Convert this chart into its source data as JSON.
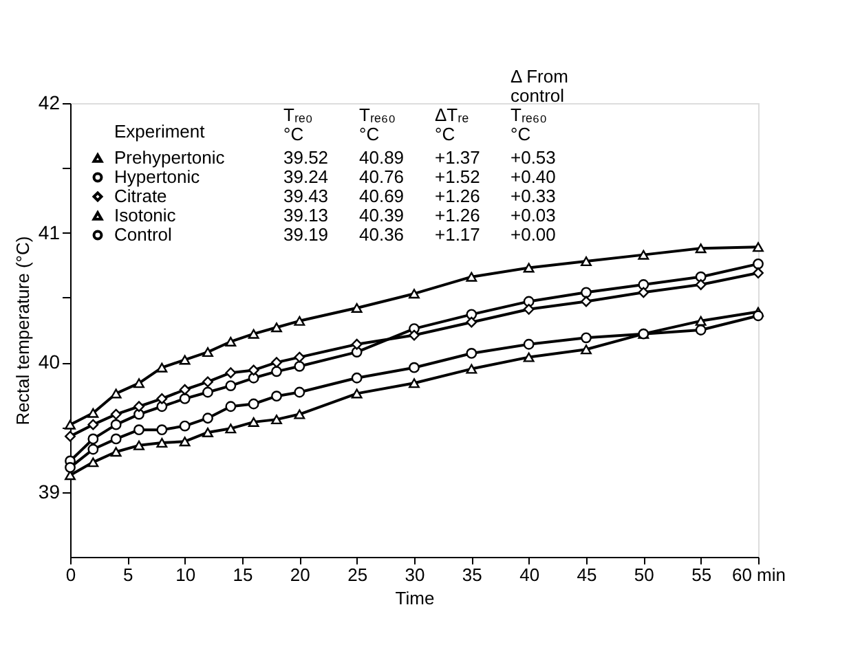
{
  "chart_data": {
    "type": "line",
    "xlabel": "Time",
    "ylabel": "Rectal temperature (°C)",
    "legend_title": "Experiment",
    "legend": "top left",
    "grid": false,
    "line_style": "solid",
    "x": [
      0,
      2,
      4,
      6,
      8,
      10,
      12,
      14,
      16,
      18,
      20,
      25,
      30,
      35,
      40,
      45,
      50,
      55,
      60
    ],
    "xlim": [
      0,
      60
    ],
    "xticks": [
      0,
      5,
      10,
      15,
      20,
      25,
      30,
      35,
      40,
      45,
      50,
      55,
      {
        "value": 60,
        "label": "60 min"
      }
    ],
    "ylim": [
      38.5,
      42
    ],
    "yticks": [
      39,
      {
        "value": 39.5,
        "label": null
      },
      40,
      {
        "value": 40.5,
        "label": null
      },
      41,
      {
        "value": 41.5,
        "label": null
      },
      42
    ],
    "series": [
      {
        "name": "Prehypertonic",
        "color": "#000000",
        "marker": "triangle",
        "values": [
          39.52,
          39.61,
          39.76,
          39.84,
          39.96,
          40.02,
          40.08,
          40.16,
          40.22,
          40.27,
          40.32,
          40.42,
          40.53,
          40.66,
          40.73,
          40.78,
          40.83,
          40.88,
          40.89
        ]
      },
      {
        "name": "Hypertonic",
        "color": "#000000",
        "marker": "circle",
        "values": [
          39.24,
          39.41,
          39.52,
          39.6,
          39.66,
          39.72,
          39.77,
          39.82,
          39.88,
          39.93,
          39.97,
          40.08,
          40.26,
          40.37,
          40.47,
          40.54,
          40.6,
          40.66,
          40.76
        ]
      },
      {
        "name": "Citrate",
        "color": "#000000",
        "marker": "diamond",
        "values": [
          39.43,
          39.52,
          39.6,
          39.66,
          39.72,
          39.79,
          39.85,
          39.92,
          39.94,
          40.0,
          40.04,
          40.14,
          40.21,
          40.31,
          40.41,
          40.47,
          40.54,
          40.6,
          40.69
        ]
      },
      {
        "name": "Isotonic",
        "color": "#000000",
        "marker": "triangle",
        "values": [
          39.13,
          39.23,
          39.31,
          39.36,
          39.38,
          39.39,
          39.46,
          39.49,
          39.54,
          39.56,
          39.6,
          39.76,
          39.84,
          39.95,
          40.04,
          40.1,
          40.22,
          40.32,
          40.39
        ]
      },
      {
        "name": "Control",
        "color": "#000000",
        "marker": "circle",
        "values": [
          39.19,
          39.33,
          39.41,
          39.48,
          39.48,
          39.51,
          39.57,
          39.66,
          39.68,
          39.74,
          39.77,
          39.88,
          39.96,
          40.07,
          40.14,
          40.19,
          40.22,
          40.25,
          40.36
        ]
      }
    ],
    "annotations": [
      "Tᵣₑ₀\n°C",
      "Tᵣₑ₆₀\n°C",
      "ΔTᵣₑ\n°C",
      "Δ From\ncontrol\nTᵣₑ₆₀\n°C",
      "39.52",
      "40.89",
      "+1.37",
      "+0.53",
      "39.24",
      "40.76",
      "+1.52",
      "+0.40",
      "39.43",
      "40.69",
      "+1.26",
      "+0.33",
      "39.13",
      "40.39",
      "+1.26",
      "+0.03",
      "39.19",
      "40.36",
      "+1.17",
      "+0.00"
    ]
  }
}
